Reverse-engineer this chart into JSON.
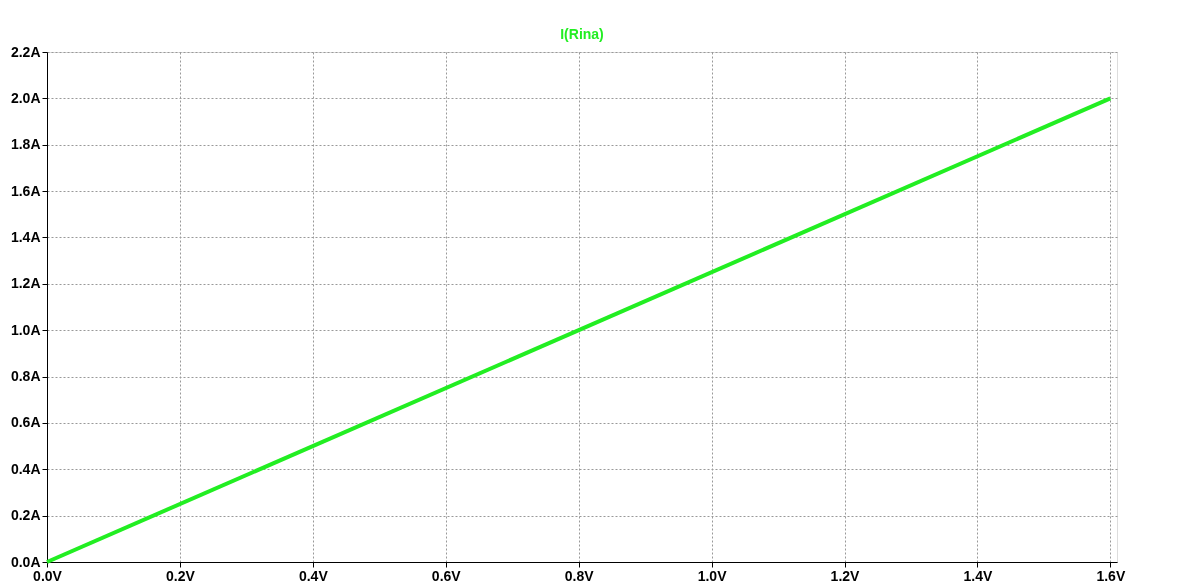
{
  "chart_data": {
    "type": "line",
    "series": [
      {
        "name": "I(Rina)",
        "color": "#22ee22",
        "x": [
          0,
          1.6
        ],
        "values": [
          0,
          2.0
        ]
      }
    ],
    "xlim": [
      0,
      1.61
    ],
    "xticks": [
      {
        "value": 0,
        "label": "0.0V"
      },
      {
        "value": 0.2,
        "label": "0.2V"
      },
      {
        "value": 0.4,
        "label": "0.4V"
      },
      {
        "value": 0.6,
        "label": "0.6V"
      },
      {
        "value": 0.8,
        "label": "0.8V"
      },
      {
        "value": 1.0,
        "label": "1.0V"
      },
      {
        "value": 1.2,
        "label": "1.2V"
      },
      {
        "value": 1.4,
        "label": "1.4V"
      },
      {
        "value": 1.6,
        "label": "1.6V"
      }
    ],
    "ylim": [
      0,
      2.2
    ],
    "yticks": [
      {
        "value": 0,
        "label": "0.0A"
      },
      {
        "value": 0.2,
        "label": "0.2A"
      },
      {
        "value": 0.4,
        "label": "0.4A"
      },
      {
        "value": 0.6,
        "label": "0.6A"
      },
      {
        "value": 0.8,
        "label": "0.8A"
      },
      {
        "value": 1.0,
        "label": "1.0A"
      },
      {
        "value": 1.2,
        "label": "1.2A"
      },
      {
        "value": 1.4,
        "label": "1.4A"
      },
      {
        "value": 1.6,
        "label": "1.6A"
      },
      {
        "value": 1.8,
        "label": "1.8A"
      },
      {
        "value": 2.0,
        "label": "2.0A"
      },
      {
        "value": 2.2,
        "label": "2.2A"
      }
    ],
    "grid": true,
    "legend": "top",
    "line_style": "solid",
    "marker": "none"
  }
}
